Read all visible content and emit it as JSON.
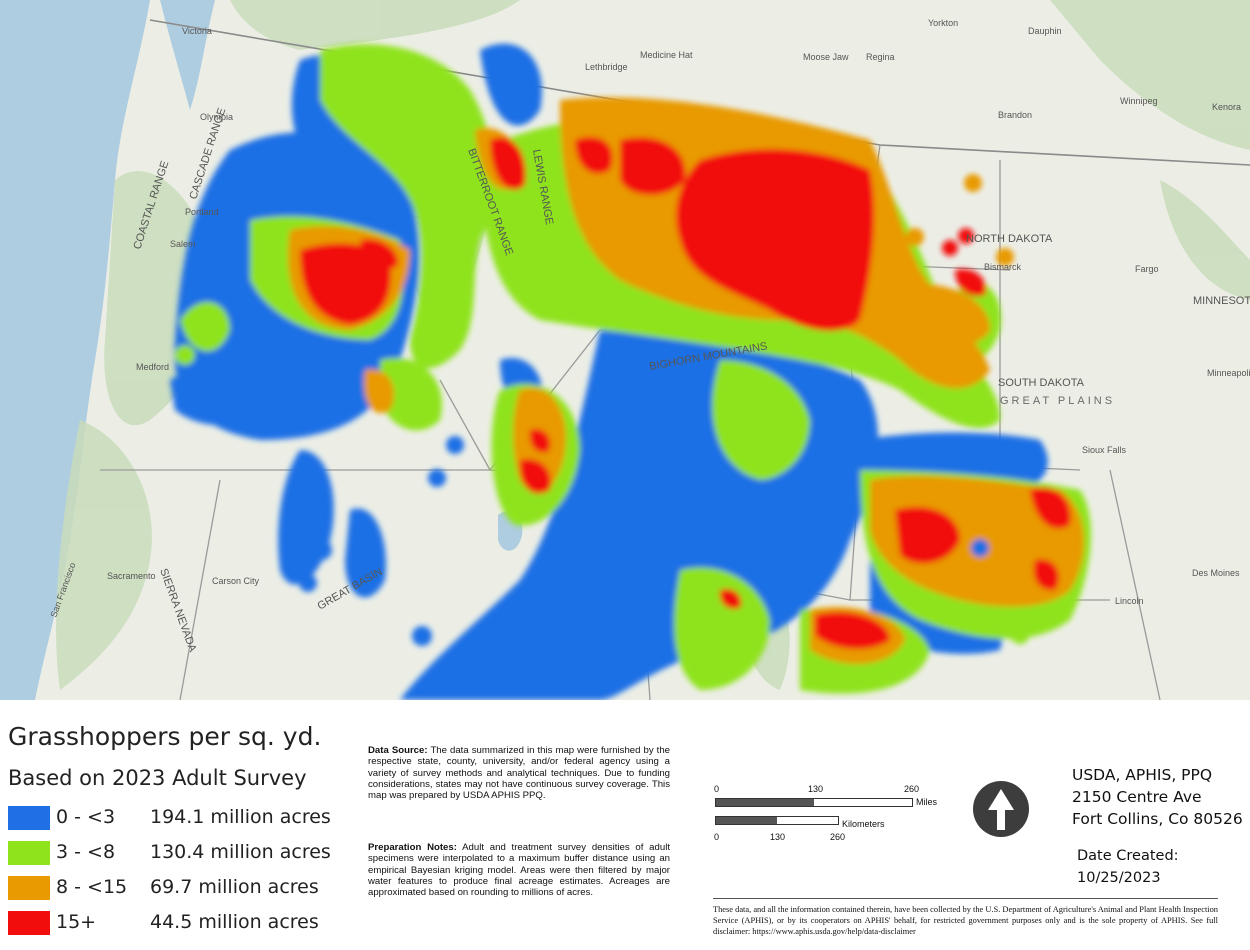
{
  "map": {
    "places": [
      {
        "name": "Victoria",
        "size": "sm"
      },
      {
        "name": "Medicine Hat",
        "size": "sm"
      },
      {
        "name": "Lethbridge",
        "size": "sm"
      },
      {
        "name": "Moose Jaw",
        "size": "sm"
      },
      {
        "name": "Regina",
        "size": "sm"
      },
      {
        "name": "Yorkton",
        "size": "sm"
      },
      {
        "name": "Dauphin",
        "size": "sm"
      },
      {
        "name": "Winnipeg",
        "size": "sm"
      },
      {
        "name": "Brandon",
        "size": "sm"
      },
      {
        "name": "Kenora",
        "size": "sm"
      },
      {
        "name": "Olympia",
        "size": "sm"
      },
      {
        "name": "Portland",
        "size": "sm"
      },
      {
        "name": "Salem",
        "size": "sm"
      },
      {
        "name": "Medford",
        "size": "sm"
      },
      {
        "name": "Bismarck",
        "size": "sm"
      },
      {
        "name": "Fargo",
        "size": "sm"
      },
      {
        "name": "Minneapolis",
        "size": "sm"
      },
      {
        "name": "Sioux Falls",
        "size": "sm"
      },
      {
        "name": "Des Moines",
        "size": "sm"
      },
      {
        "name": "Lincoln",
        "size": "sm"
      },
      {
        "name": "Sacramento",
        "size": "sm"
      },
      {
        "name": "Carson City",
        "size": "sm"
      },
      {
        "name": "San Francisco",
        "size": "sm"
      },
      {
        "name": "NORTH DAKOTA",
        "size": "md"
      },
      {
        "name": "SOUTH DAKOTA",
        "size": "md"
      },
      {
        "name": "MINNESOTA",
        "size": "md"
      },
      {
        "name": "GREAT PLAINS",
        "size": "lg"
      },
      {
        "name": "COASTAL RANGE",
        "size": "md"
      },
      {
        "name": "CASCADE RANGE",
        "size": "md"
      },
      {
        "name": "SIERRA NEVADA",
        "size": "md"
      },
      {
        "name": "GREAT BASIN",
        "size": "md"
      },
      {
        "name": "BITTERROOT RANGE",
        "size": "md"
      },
      {
        "name": "LEWIS RANGE",
        "size": "md"
      },
      {
        "name": "BIGHORN MOUNTAINS",
        "size": "md"
      }
    ],
    "colors": {
      "land": "#eceee6",
      "forest": "#c9dcbb",
      "water": "#aecde0",
      "border": "#9a9a9a"
    }
  },
  "legend": {
    "title": "Grasshoppers per sq. yd.",
    "subtitle": "Based on 2023 Adult Survey",
    "classes": [
      {
        "range": "0 - <3",
        "area": "194.1 million acres",
        "color": "#1f6fe5"
      },
      {
        "range": "3 - <8",
        "area": "130.4 million acres",
        "color": "#8fe31a"
      },
      {
        "range": "8 - <15",
        "area": "69.7 million acres",
        "color": "#e89a00"
      },
      {
        "range": "15+",
        "area": "44.5 million acres",
        "color": "#f20d0d"
      }
    ]
  },
  "notes": {
    "data_source_label": "Data Source:",
    "data_source_text": "The data summarized in this map were furnished by the respective state, county, university, and/or federal agency using a variety of survey methods and analytical techniques. Due to funding considerations, states may not have continuous survey coverage. This map was prepared by USDA APHIS PPQ.",
    "prep_label": "Preparation Notes:",
    "prep_text": "Adult and treatment survey densities of adult specimens were interpolated to a maximum buffer distance using an empirical Bayesian kriging model. Areas were then filtered by major water features to produce final acreage estimates. Acreages are approximated based on rounding to millions of acres."
  },
  "scalebar": {
    "miles_ticks": [
      "0",
      "130",
      "260"
    ],
    "miles_unit": "Miles",
    "km_unit": "Kilometers",
    "km_ticks": [
      "0",
      "130",
      "260"
    ]
  },
  "agency": {
    "line1": "USDA, APHIS, PPQ",
    "line2": "2150 Centre Ave",
    "line3": "Fort Collins, Co 80526"
  },
  "date": {
    "label": "Date Created:",
    "value": "10/25/2023"
  },
  "disclaimer": "These data, and all the information contained therein, have been collected by the U.S. Department of Agriculture's Animal and Plant Health Inspection Service (APHIS), or by its cooperators on APHIS' behalf, for restricted government purposes only and is the sole property of APHIS. See full disclaimer: https://www.aphis.usda.gov/help/data-disclaimer"
}
